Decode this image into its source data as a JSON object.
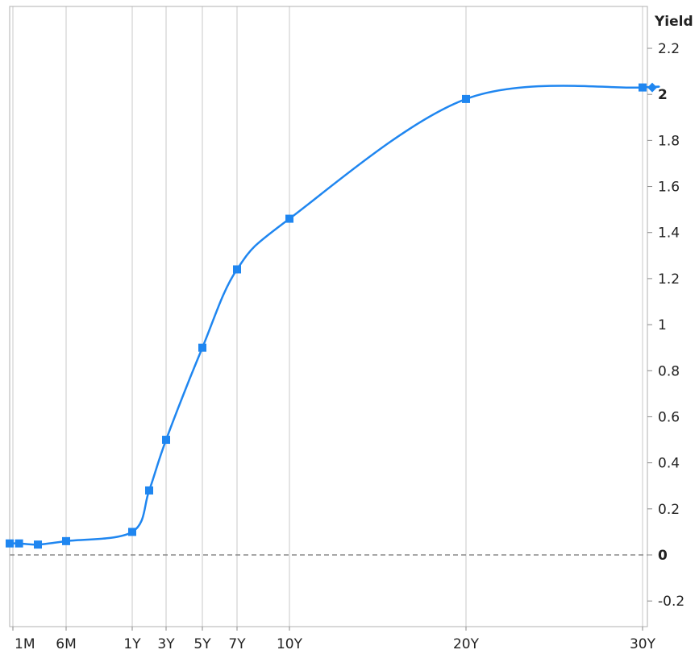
{
  "chart_data": {
    "type": "line",
    "ylabel": "Yield",
    "ylim": [
      -0.25,
      2.35
    ],
    "xlim": [
      0,
      30.1
    ],
    "grid": "vertical lines at maturities",
    "zero_line": "dashed",
    "line_color": "#1f86f0",
    "grid_color": "#c8c8c8",
    "y_ticks": [
      -0.2,
      0,
      0.2,
      0.4,
      0.6,
      0.8,
      1,
      1.2,
      1.4,
      1.6,
      1.8,
      2,
      2.2
    ],
    "y_tick_labels": [
      "-0.2",
      "0",
      "0.2",
      "0.4",
      "0.6",
      "0.8",
      "1",
      "1.2",
      "1.4",
      "1.6",
      "1.8",
      "2",
      "2.2"
    ],
    "x_ticks": [
      {
        "label": "1M",
        "x": 0.083
      },
      {
        "label": "6M",
        "x": 0.5
      },
      {
        "label": "1Y",
        "x": 1
      },
      {
        "label": "3Y",
        "x": 3
      },
      {
        "label": "5Y",
        "x": 5
      },
      {
        "label": "7Y",
        "x": 7
      },
      {
        "label": "10Y",
        "x": 10
      },
      {
        "label": "20Y",
        "x": 20
      },
      {
        "label": "30Y",
        "x": 30
      }
    ],
    "series": [
      {
        "points": [
          {
            "x": 0.0,
            "y": 0.05
          },
          {
            "x": 0.083,
            "y": 0.05
          },
          {
            "x": 0.25,
            "y": 0.045
          },
          {
            "x": 0.5,
            "y": 0.06
          },
          {
            "x": 1,
            "y": 0.1
          },
          {
            "x": 2,
            "y": 0.28
          },
          {
            "x": 3,
            "y": 0.5
          },
          {
            "x": 5,
            "y": 0.9
          },
          {
            "x": 7,
            "y": 1.24
          },
          {
            "x": 10,
            "y": 1.46
          },
          {
            "x": 20,
            "y": 1.98
          },
          {
            "x": 30,
            "y": 2.03
          },
          {
            "x": 30.1,
            "y": 2.03
          }
        ]
      }
    ]
  }
}
